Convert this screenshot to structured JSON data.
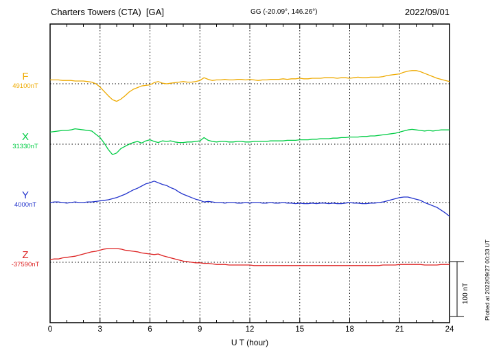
{
  "header": {
    "title": "Charters Towers (CTA)  [GA]",
    "coordinates": "GG (-20.09°, 146.26°)",
    "date": "2022/09/01"
  },
  "footer": {
    "plotted_at": "Plotted at 2022/09/27 00:33 UT"
  },
  "chart_data": {
    "type": "line",
    "title": "Charters Towers (CTA) [GA] magnetogram for 2022/09/01",
    "xlabel": "U T (hour)",
    "x_range": [
      0,
      24
    ],
    "x_ticks": [
      0,
      3,
      6,
      9,
      12,
      15,
      18,
      21,
      24
    ],
    "grid": "vertical dotted gridlines every 3 hours; dotted horizontal baseline per trace",
    "legend_position": "left labels, one per trace",
    "sample_interval_hours": 0.25,
    "scale_bar": {
      "label": "100 nT",
      "span_nT": 100
    },
    "series": [
      {
        "name": "F",
        "color": "#eeaa00",
        "baseline_label": "49100nT",
        "baseline_nT": 49100,
        "delta_nT": [
          7,
          7,
          7,
          6,
          6,
          6,
          5,
          5,
          5,
          4,
          3,
          0,
          -6,
          -14,
          -22,
          -29,
          -32,
          -28,
          -22,
          -15,
          -10,
          -7,
          -4,
          -3,
          -2,
          2,
          4,
          1,
          0,
          1,
          2,
          3,
          4,
          3,
          3,
          4,
          6,
          11,
          8,
          6,
          7,
          7,
          8,
          7,
          7,
          8,
          8,
          7,
          8,
          7,
          6,
          7,
          7,
          8,
          8,
          8,
          9,
          8,
          9,
          9,
          10,
          9,
          9,
          10,
          10,
          10,
          11,
          11,
          11,
          10,
          11,
          11,
          10,
          11,
          12,
          11,
          11,
          12,
          12,
          12,
          13,
          15,
          16,
          17,
          18,
          21,
          23,
          24,
          24,
          22,
          19,
          16,
          13,
          10,
          8,
          6,
          4
        ]
      },
      {
        "name": "X",
        "color": "#00cc44",
        "baseline_label": "31330nT",
        "baseline_nT": 31330,
        "delta_nT": [
          22,
          23,
          24,
          25,
          25,
          26,
          28,
          27,
          26,
          25,
          24,
          18,
          12,
          2,
          -10,
          -19,
          -16,
          -8,
          -4,
          0,
          3,
          5,
          2,
          6,
          8,
          5,
          3,
          6,
          5,
          6,
          4,
          3,
          3,
          4,
          4,
          5,
          6,
          12,
          7,
          5,
          4,
          5,
          5,
          4,
          4,
          5,
          5,
          4,
          4,
          5,
          5,
          5,
          5,
          6,
          6,
          6,
          6,
          7,
          7,
          7,
          8,
          8,
          8,
          9,
          9,
          10,
          10,
          10,
          11,
          11,
          12,
          12,
          13,
          13,
          13,
          14,
          14,
          15,
          15,
          16,
          17,
          18,
          19,
          20,
          22,
          24,
          26,
          27,
          26,
          25,
          24,
          25,
          24,
          25,
          26,
          26,
          26
        ]
      },
      {
        "name": "Y",
        "color": "#2233cc",
        "baseline_label": "4000nT",
        "baseline_nT": 4000,
        "delta_nT": [
          0,
          1,
          1,
          0,
          -1,
          0,
          1,
          0,
          0,
          1,
          1,
          2,
          3,
          4,
          5,
          7,
          9,
          12,
          15,
          19,
          23,
          26,
          30,
          34,
          36,
          39,
          36,
          33,
          31,
          27,
          24,
          19,
          15,
          12,
          9,
          6,
          4,
          1,
          2,
          1,
          0,
          0,
          -1,
          0,
          0,
          -1,
          -1,
          0,
          -1,
          0,
          0,
          -1,
          -1,
          0,
          -1,
          -1,
          0,
          -1,
          -1,
          -2,
          -1,
          -2,
          -2,
          -1,
          -2,
          -1,
          -1,
          -2,
          -1,
          -2,
          -2,
          -1,
          0,
          -1,
          -1,
          -2,
          -2,
          -1,
          -1,
          0,
          1,
          3,
          5,
          7,
          9,
          10,
          10,
          8,
          6,
          4,
          0,
          -3,
          -6,
          -9,
          -14,
          -19,
          -25
        ]
      },
      {
        "name": "Z",
        "color": "#dd2222",
        "baseline_label": "-37590nT",
        "baseline_nT": -37590,
        "delta_nT": [
          5,
          6,
          6,
          8,
          9,
          10,
          11,
          13,
          15,
          17,
          19,
          20,
          22,
          24,
          25,
          25,
          25,
          24,
          22,
          21,
          20,
          19,
          17,
          16,
          15,
          14,
          15,
          12,
          10,
          8,
          6,
          4,
          2,
          1,
          0,
          -1,
          -1,
          -2,
          -2,
          -3,
          -4,
          -4,
          -4,
          -5,
          -5,
          -5,
          -5,
          -5,
          -5,
          -6,
          -6,
          -6,
          -6,
          -6,
          -6,
          -6,
          -6,
          -6,
          -6,
          -6,
          -6,
          -6,
          -6,
          -6,
          -6,
          -6,
          -6,
          -6,
          -6,
          -6,
          -6,
          -6,
          -6,
          -6,
          -6,
          -6,
          -6,
          -6,
          -6,
          -6,
          -5,
          -5,
          -5,
          -5,
          -4,
          -4,
          -4,
          -4,
          -4,
          -4,
          -5,
          -5,
          -5,
          -5,
          -4,
          -4,
          -4
        ]
      }
    ]
  }
}
